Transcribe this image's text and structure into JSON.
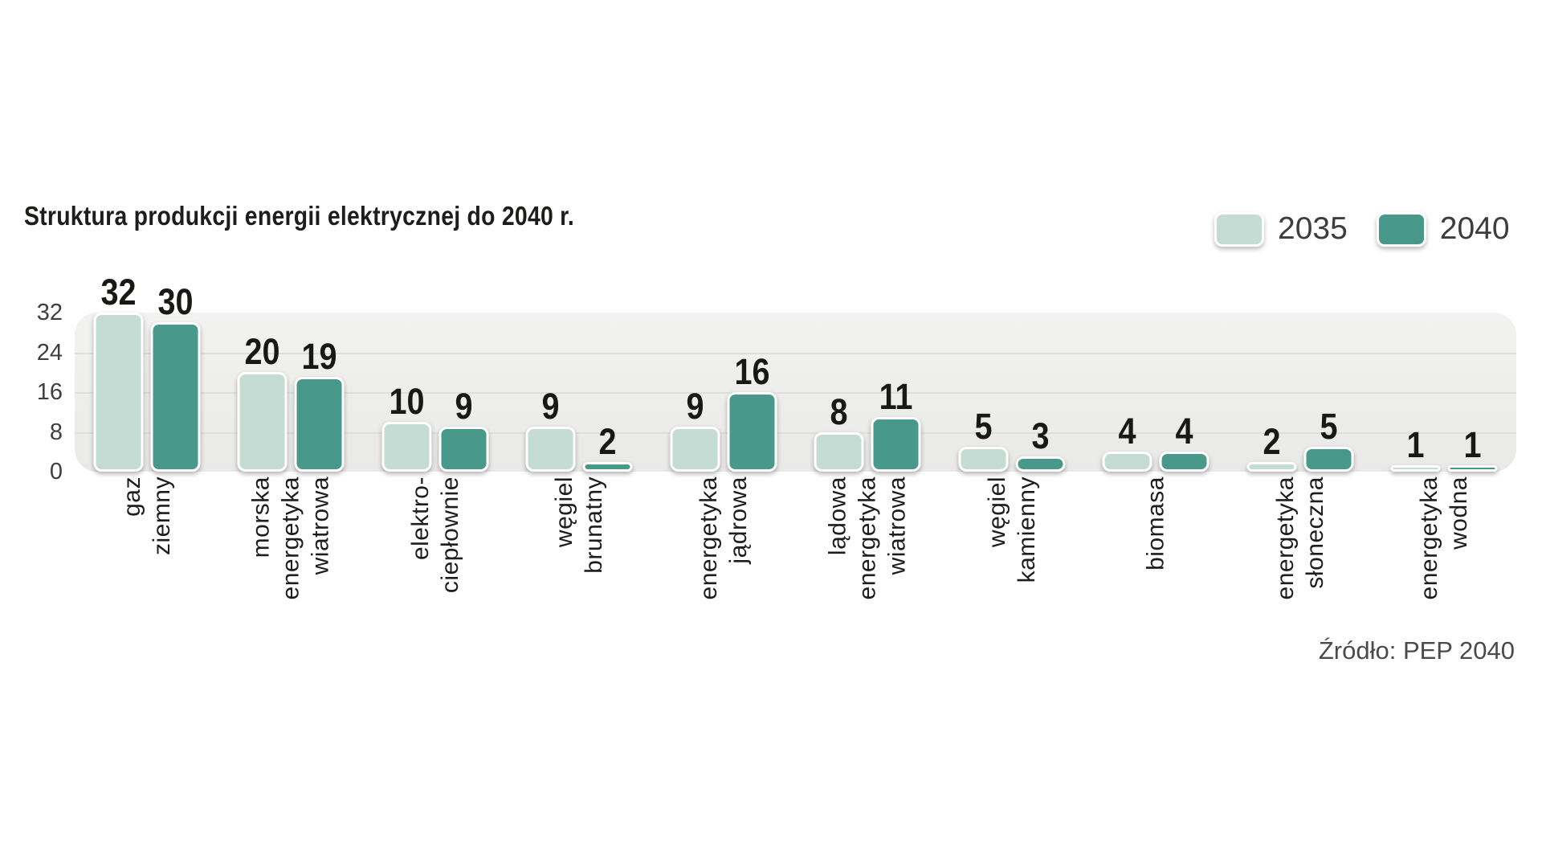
{
  "title": "Struktura produkcji energii elektrycznej do 2040 r.",
  "source": "Źródło: PEP 2040",
  "legend": [
    {
      "label": "2035",
      "color": "#c5dcd5"
    },
    {
      "label": "2040",
      "color": "#48998a"
    }
  ],
  "chart_data": {
    "type": "bar",
    "title": "Struktura produkcji energii elektrycznej do 2040 r.",
    "categories": [
      [
        "gaz",
        "ziemny"
      ],
      [
        "morska",
        "energetyka",
        "wiatrowa"
      ],
      [
        "elektro-",
        "ciepłownie"
      ],
      [
        "węgiel",
        "brunatny"
      ],
      [
        "energetyka",
        "jądrowa"
      ],
      [
        "lądowa",
        "energetyka",
        "wiatrowa"
      ],
      [
        "węgiel",
        "kamienny"
      ],
      [
        "biomasa"
      ],
      [
        "energetyka",
        "słoneczna"
      ],
      [
        "energetyka",
        "wodna"
      ]
    ],
    "series": [
      {
        "name": "2035",
        "color": "#c5dcd5",
        "values": [
          32,
          20,
          10,
          9,
          9,
          8,
          5,
          4,
          2,
          1
        ]
      },
      {
        "name": "2040",
        "color": "#48998a",
        "values": [
          30,
          19,
          9,
          2,
          16,
          11,
          3,
          4,
          5,
          1
        ]
      }
    ],
    "yticks": [
      32,
      24,
      16,
      8,
      0
    ],
    "ylim": [
      0,
      32
    ],
    "grid": true,
    "legend_position": "top-right",
    "value_labels": true,
    "source": "Źródło: PEP 2040"
  }
}
